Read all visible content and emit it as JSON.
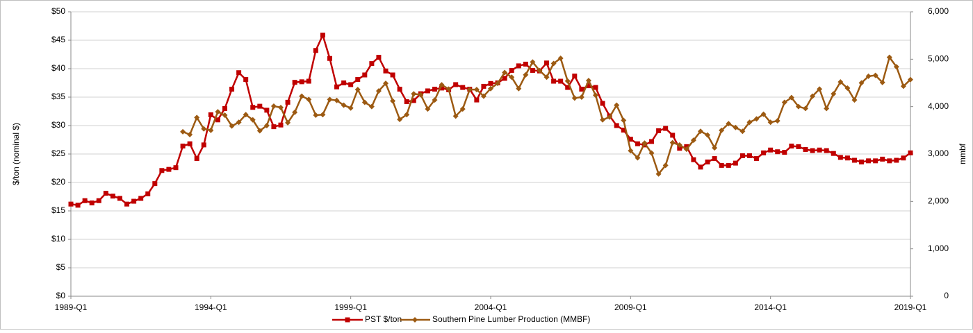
{
  "chart_data": {
    "type": "line",
    "y_label": "$/ton (nominal $)",
    "y2_label": "mmbf",
    "categories": [
      "1989-Q1",
      null,
      null,
      null,
      null,
      null,
      null,
      null,
      null,
      null,
      null,
      null,
      null,
      null,
      null,
      null,
      null,
      null,
      null,
      null,
      "1994-Q1",
      null,
      null,
      null,
      null,
      null,
      null,
      null,
      null,
      null,
      null,
      null,
      null,
      null,
      null,
      null,
      null,
      null,
      null,
      null,
      "1999-Q1",
      null,
      null,
      null,
      null,
      null,
      null,
      null,
      null,
      null,
      null,
      null,
      null,
      null,
      null,
      null,
      null,
      null,
      null,
      null,
      "2004-Q1",
      null,
      null,
      null,
      null,
      null,
      null,
      null,
      null,
      null,
      null,
      null,
      null,
      null,
      null,
      null,
      null,
      null,
      null,
      null,
      "2009-Q1",
      null,
      null,
      null,
      null,
      null,
      null,
      null,
      null,
      null,
      null,
      null,
      null,
      null,
      null,
      null,
      null,
      null,
      null,
      null,
      "2014-Q1",
      null,
      null,
      null,
      null,
      null,
      null,
      null,
      null,
      null,
      null,
      null,
      null,
      null,
      null,
      null,
      null,
      null,
      null,
      null,
      "2019-Q1"
    ],
    "ylim": [
      0,
      50
    ],
    "yticks": [
      {
        "value": 0,
        "label": "$0"
      },
      {
        "value": 5,
        "label": "$5"
      },
      {
        "value": 10,
        "label": "$10"
      },
      {
        "value": 15,
        "label": "$15"
      },
      {
        "value": 20,
        "label": "$20"
      },
      {
        "value": 25,
        "label": "$25"
      },
      {
        "value": 30,
        "label": "$30"
      },
      {
        "value": 35,
        "label": "$35"
      },
      {
        "value": 40,
        "label": "$40"
      },
      {
        "value": 45,
        "label": "$45"
      },
      {
        "value": 50,
        "label": "$50"
      }
    ],
    "y2lim": [
      0,
      6000
    ],
    "y2ticks": [
      0,
      {
        "value": 1000,
        "label": "1,000"
      },
      {
        "value": 2000,
        "label": "2,000"
      },
      {
        "value": 3000,
        "label": "3,000"
      },
      {
        "value": 4000,
        "label": "4,000"
      },
      {
        "value": 5000,
        "label": "5,000"
      },
      {
        "value": 6000,
        "label": "6,000"
      }
    ],
    "grid": true,
    "legend": "bottom",
    "series": [
      {
        "name": "PST $/ton",
        "color": "#c00000",
        "marker": "square",
        "values": [
          16.2,
          16.0,
          16.8,
          16.4,
          16.8,
          18.1,
          17.6,
          17.2,
          16.2,
          16.7,
          17.2,
          18.0,
          19.8,
          22.1,
          22.3,
          22.6,
          26.4,
          26.8,
          24.2,
          26.6,
          31.9,
          31.0,
          33.0,
          36.4,
          39.3,
          38.1,
          33.2,
          33.4,
          32.7,
          29.8,
          30.1,
          34.1,
          37.6,
          37.7,
          37.8,
          43.2,
          45.9,
          41.8,
          36.8,
          37.5,
          37.2,
          38.1,
          38.9,
          40.9,
          42.0,
          39.6,
          38.9,
          36.4,
          34.2,
          34.4,
          35.6,
          36.1,
          36.4,
          36.6,
          36.3,
          37.2,
          36.7,
          36.4,
          34.5,
          36.9,
          37.4,
          37.5,
          38.3,
          39.7,
          40.5,
          40.8,
          39.7,
          39.6,
          41.0,
          37.8,
          37.8,
          36.7,
          38.7,
          36.4,
          37.0,
          36.7,
          33.9,
          31.7,
          30.0,
          29.2,
          27.6,
          26.8,
          26.6,
          27.2,
          29.1,
          29.5,
          28.3,
          26.0,
          26.3,
          24.0,
          22.7,
          23.6,
          24.2,
          23.0,
          23.0,
          23.4,
          24.7,
          24.7,
          24.2,
          25.2,
          25.7,
          25.4,
          25.3,
          26.4,
          26.3,
          25.8,
          25.6,
          25.7,
          25.6,
          25.1,
          24.4,
          24.3,
          23.9,
          23.6,
          23.8,
          23.8,
          24.1,
          23.8,
          23.9,
          24.3,
          25.2
        ]
      },
      {
        "name": "Southern Pine Lumber Production (MMBF)",
        "color": "#9c5a12",
        "marker": "diamond",
        "axis": "y2",
        "values": [
          null,
          null,
          null,
          null,
          null,
          null,
          null,
          null,
          null,
          null,
          null,
          null,
          null,
          null,
          null,
          null,
          3470,
          3410,
          3770,
          3530,
          3500,
          3890,
          3820,
          3590,
          3670,
          3830,
          3720,
          3490,
          3600,
          4010,
          3980,
          3660,
          3880,
          4220,
          4150,
          3820,
          3830,
          4150,
          4130,
          4030,
          3970,
          4360,
          4090,
          4000,
          4330,
          4490,
          4120,
          3730,
          3830,
          4270,
          4250,
          3950,
          4140,
          4460,
          4370,
          3800,
          3950,
          4360,
          4360,
          4220,
          4380,
          4490,
          4720,
          4620,
          4380,
          4670,
          4940,
          4760,
          4620,
          4910,
          5020,
          4540,
          4180,
          4200,
          4550,
          4240,
          3720,
          3780,
          4030,
          3710,
          3070,
          2920,
          3230,
          3020,
          2580,
          2760,
          3240,
          3190,
          3100,
          3290,
          3480,
          3400,
          3130,
          3500,
          3640,
          3560,
          3480,
          3670,
          3740,
          3840,
          3670,
          3700,
          4090,
          4190,
          4000,
          3960,
          4220,
          4370,
          3960,
          4270,
          4520,
          4390,
          4140,
          4500,
          4640,
          4660,
          4510,
          5040,
          4840,
          4430,
          4570
        ]
      }
    ]
  }
}
